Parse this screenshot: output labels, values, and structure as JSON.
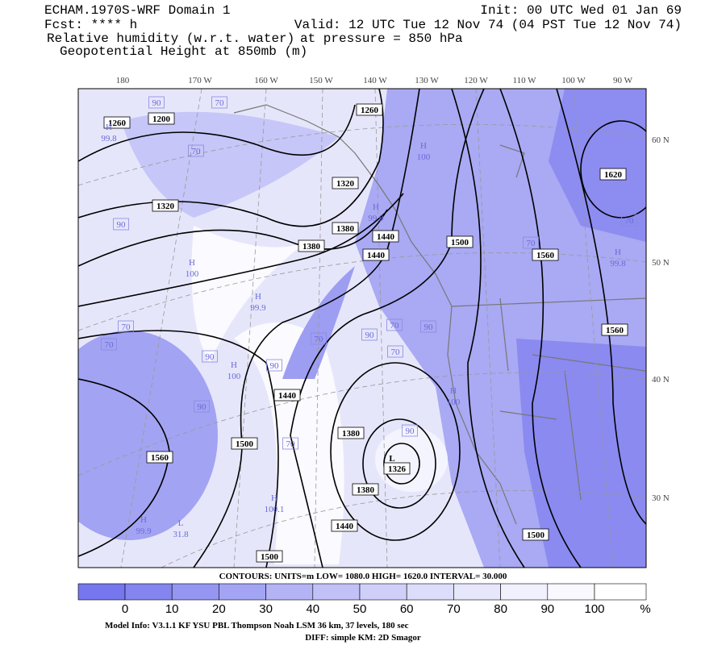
{
  "header": {
    "line1_left": "ECHAM.1970S-WRF Domain 1",
    "line1_right": "Init: 00 UTC Wed 01 Jan 69",
    "line2_left": "Fcst: **** h",
    "line2_right": "Valid: 12 UTC Tue 12 Nov 74 (04 PST Tue 12 Nov 74)",
    "line3_left": "Relative humidity (w.r.t. water)",
    "line3_right": "at pressure =  850 hPa",
    "line4_left": "Geopotential Height at 850mb (m)"
  },
  "longitude_labels": [
    "180",
    "170 W",
    "160 W",
    "150 W",
    "140 W",
    "130 W",
    "120 W",
    "110 W",
    "100 W",
    "90 W"
  ],
  "latitude_labels": [
    "60 N",
    "50 N",
    "40 N",
    "30 N"
  ],
  "contour_labels": [
    "1260",
    "1200",
    "1260",
    "1320",
    "1320",
    "1380",
    "1380",
    "1440",
    "1440",
    "1500",
    "1560",
    "1620",
    "1560",
    "1440",
    "1500",
    "1560",
    "1380",
    "1380",
    "1440",
    "1500",
    "1500"
  ],
  "low_center": {
    "mark": "L",
    "value": "1326"
  },
  "humidity_extrema": [
    {
      "mark": "H",
      "value": "100"
    },
    {
      "mark": "H",
      "value": "99.9"
    },
    {
      "mark": "H",
      "value": "100"
    },
    {
      "mark": "H",
      "value": "100.1"
    },
    {
      "mark": "H",
      "value": "99.9"
    },
    {
      "mark": "L",
      "value": "31.8"
    },
    {
      "mark": "H",
      "value": "100"
    },
    {
      "mark": "H",
      "value": "99.9"
    },
    {
      "mark": "H",
      "value": "99.8"
    },
    {
      "mark": "H",
      "value": "100"
    },
    {
      "mark": "H",
      "value": "99.8"
    }
  ],
  "humidity_labels": [
    "90",
    "70",
    "70",
    "90",
    "70",
    "70",
    "90",
    "90",
    "70",
    "90",
    "70",
    "70",
    "90",
    "90",
    "70",
    "70",
    "90",
    "70"
  ],
  "contour_info": "CONTOURS:  UNITS=m  LOW=  1080.0      HIGH=  1620.0       INTERVAL=   30.000",
  "colorbar": {
    "ticks": [
      "0",
      "10",
      "20",
      "30",
      "40",
      "50",
      "60",
      "70",
      "80",
      "90",
      "100"
    ],
    "unit": "%",
    "colors": [
      "#7676ee",
      "#8585f0",
      "#9595f2",
      "#a4a4f4",
      "#b3b3f6",
      "#c1c1f7",
      "#cfcff9",
      "#dcdcfb",
      "#e7e7fc",
      "#f1f1fd",
      "#f8f8fe",
      "#ffffff"
    ]
  },
  "footer": {
    "line1": "Model Info: V3.1.1    KF       YSU PBL   Thompson     Noah LSM   36 km,     37 levels,   180 sec",
    "line2": "DIFF: simple KM: 2D Smagor"
  }
}
